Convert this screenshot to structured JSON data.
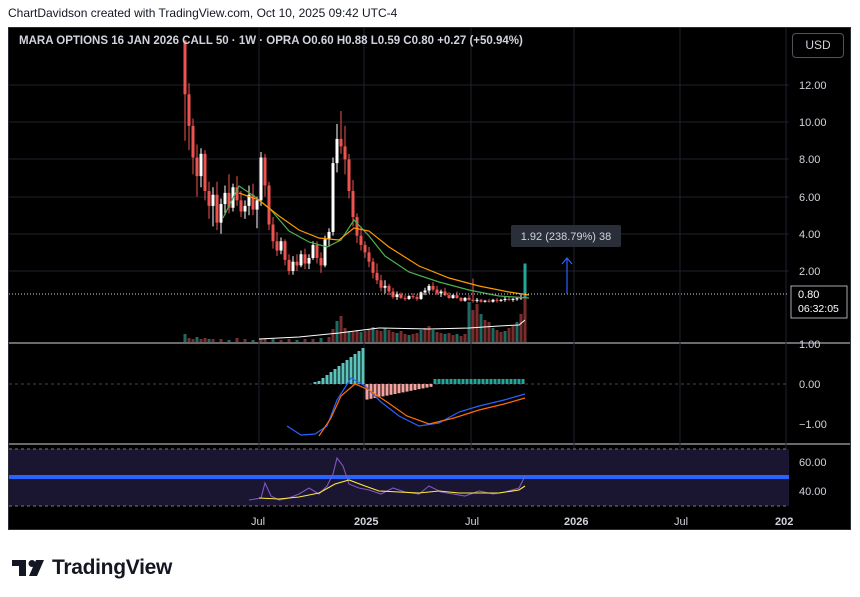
{
  "credit": {
    "author": "ChartDavidson",
    "text": "ChartDavidson created with TradingView.com, Oct 10, 2025 09:42 UTC-4"
  },
  "symbol_line": "MARA OPTIONS 16 JAN 2026 CALL 50 · 1W · OPRA  O0.60  H0.88  L0.59  C0.80  +0.27 (+50.94%)",
  "currency": "USD",
  "price_axis": {
    "labels": [
      "12.00",
      "10.00",
      "8.00",
      "6.00",
      "4.00",
      "2.00"
    ],
    "last_price": "0.80",
    "countdown": "06:32:05"
  },
  "measure_label": "1.92 (238.79%) 38",
  "macd_axis": [
    "1.00",
    "0.00",
    "−1.00"
  ],
  "rsi_axis": [
    "60.00",
    "40.00"
  ],
  "time_axis": [
    "Jul",
    "2025",
    "Jul",
    "2026",
    "Jul",
    "202"
  ],
  "footer": {
    "brand": "TradingView"
  },
  "colors": {
    "up": "#26a69a",
    "down": "#ef5350",
    "up_fill": "#ffffff",
    "macd_line": "#2962ff",
    "signal_line": "#ff6d00",
    "rsi_line": "#7e57c2",
    "rsi_ma": "#ffeb3b",
    "ma_fast": "#4caf50",
    "ma_slow": "#ff9800",
    "measure": "#2962ff"
  }
}
